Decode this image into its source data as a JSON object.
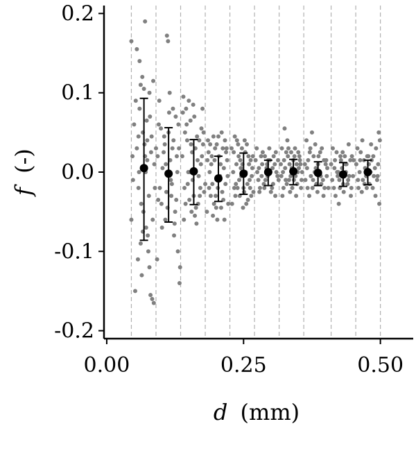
{
  "chart_data": {
    "type": "scatter",
    "xlabel_var": "d",
    "xlabel_unit": "(mm)",
    "ylabel_var": "f",
    "ylabel_unit": "(-)",
    "xlim": [
      -0.005,
      0.56
    ],
    "ylim": [
      -0.21,
      0.21
    ],
    "x_ticks": [
      0.0,
      0.25,
      0.5
    ],
    "x_tick_labels": [
      "0.00",
      "0.25",
      "0.50"
    ],
    "y_ticks": [
      0.2,
      0.1,
      0.0,
      -0.1,
      -0.2
    ],
    "y_tick_labels": [
      "0.2",
      "0.1",
      "0.0",
      "-0.1",
      "-0.2"
    ],
    "bin_edges": [
      0.045,
      0.09,
      0.135,
      0.18,
      0.225,
      0.27,
      0.315,
      0.36,
      0.41,
      0.455,
      0.5
    ],
    "grid": "vertical dashed at bin edges",
    "colors": {
      "scatter": "#808080",
      "means": "#000000",
      "grid": "#b0b0b0"
    },
    "means": [
      {
        "x": 0.068,
        "y": 0.005,
        "err_low": -0.086,
        "err_high": 0.093
      },
      {
        "x": 0.113,
        "y": -0.002,
        "err_low": -0.063,
        "err_high": 0.056
      },
      {
        "x": 0.159,
        "y": 0.001,
        "err_low": -0.041,
        "err_high": 0.041
      },
      {
        "x": 0.204,
        "y": -0.008,
        "err_low": -0.037,
        "err_high": 0.02
      },
      {
        "x": 0.25,
        "y": -0.002,
        "err_low": -0.028,
        "err_high": 0.024
      },
      {
        "x": 0.295,
        "y": 0.0,
        "err_low": -0.017,
        "err_high": 0.015
      },
      {
        "x": 0.341,
        "y": 0.001,
        "err_low": -0.016,
        "err_high": 0.016
      },
      {
        "x": 0.386,
        "y": -0.001,
        "err_low": -0.017,
        "err_high": 0.013
      },
      {
        "x": 0.432,
        "y": -0.003,
        "err_low": -0.018,
        "err_high": 0.012
      },
      {
        "x": 0.477,
        "y": 0.0,
        "err_low": -0.016,
        "err_high": 0.015
      }
    ],
    "scatter_points": [
      [
        0.045,
        0.165
      ],
      [
        0.055,
        0.155
      ],
      [
        0.06,
        0.14
      ],
      [
        0.065,
        0.12
      ],
      [
        0.07,
        0.19
      ],
      [
        0.062,
        0.11
      ],
      [
        0.068,
        0.105
      ],
      [
        0.05,
        0.06
      ],
      [
        0.055,
        0.03
      ],
      [
        0.058,
        -0.02
      ],
      [
        0.06,
        0.08
      ],
      [
        0.063,
        -0.04
      ],
      [
        0.066,
        0.05
      ],
      [
        0.07,
        0.02
      ],
      [
        0.072,
        -0.07
      ],
      [
        0.074,
        0.04
      ],
      [
        0.076,
        -0.1
      ],
      [
        0.078,
        -0.12
      ],
      [
        0.08,
        -0.155
      ],
      [
        0.083,
        -0.16
      ],
      [
        0.086,
        -0.165
      ],
      [
        0.052,
        -0.15
      ],
      [
        0.057,
        -0.11
      ],
      [
        0.062,
        -0.09
      ],
      [
        0.067,
        -0.05
      ],
      [
        0.071,
        0.0
      ],
      [
        0.073,
        0.065
      ],
      [
        0.077,
        -0.03
      ],
      [
        0.079,
        0.07
      ],
      [
        0.081,
        0.025
      ],
      [
        0.084,
        -0.06
      ],
      [
        0.087,
        0.01
      ],
      [
        0.048,
        -0.01
      ],
      [
        0.053,
        0.09
      ],
      [
        0.059,
        0.0
      ],
      [
        0.064,
        -0.13
      ],
      [
        0.069,
        0.035
      ],
      [
        0.075,
        -0.08
      ],
      [
        0.082,
        0.045
      ],
      [
        0.088,
        -0.02
      ],
      [
        0.045,
        -0.06
      ],
      [
        0.047,
        0.02
      ],
      [
        0.085,
        0.115
      ],
      [
        0.078,
        0.1
      ],
      [
        0.09,
        0.03
      ],
      [
        0.066,
        -0.075
      ],
      [
        0.074,
        0.015
      ],
      [
        0.058,
        0.045
      ],
      [
        0.095,
        0.06
      ],
      [
        0.1,
        -0.04
      ],
      [
        0.105,
        0.045
      ],
      [
        0.11,
        0.172
      ],
      [
        0.112,
        0.165
      ],
      [
        0.115,
        0.1
      ],
      [
        0.118,
        -0.03
      ],
      [
        0.12,
        0.03
      ],
      [
        0.123,
        -0.08
      ],
      [
        0.126,
        0.07
      ],
      [
        0.13,
        -0.1
      ],
      [
        0.093,
        0.02
      ],
      [
        0.097,
        -0.02
      ],
      [
        0.102,
        0.005
      ],
      [
        0.107,
        -0.06
      ],
      [
        0.113,
        0.05
      ],
      [
        0.117,
        -0.01
      ],
      [
        0.121,
        0.08
      ],
      [
        0.125,
        -0.05
      ],
      [
        0.128,
        0.02
      ],
      [
        0.131,
        0.06
      ],
      [
        0.134,
        -0.12
      ],
      [
        0.133,
        -0.14
      ],
      [
        0.092,
        -0.11
      ],
      [
        0.096,
        0.09
      ],
      [
        0.101,
        -0.07
      ],
      [
        0.106,
        0.035
      ],
      [
        0.111,
        -0.045
      ],
      [
        0.116,
        0.015
      ],
      [
        0.119,
        -0.015
      ],
      [
        0.122,
        0.04
      ],
      [
        0.127,
        -0.035
      ],
      [
        0.129,
        0.0
      ],
      [
        0.104,
        0.025
      ],
      [
        0.109,
        -0.025
      ],
      [
        0.114,
        0.075
      ],
      [
        0.124,
        -0.065
      ],
      [
        0.099,
        0.055
      ],
      [
        0.132,
        0.03
      ],
      [
        0.094,
        -0.035
      ],
      [
        0.108,
        0.01
      ],
      [
        0.14,
        0.095
      ],
      [
        0.145,
        0.08
      ],
      [
        0.15,
        0.09
      ],
      [
        0.155,
        -0.05
      ],
      [
        0.16,
        0.07
      ],
      [
        0.165,
        0.045
      ],
      [
        0.17,
        -0.03
      ],
      [
        0.175,
        0.08
      ],
      [
        0.138,
        0.02
      ],
      [
        0.142,
        -0.02
      ],
      [
        0.147,
        0.04
      ],
      [
        0.152,
        0.0
      ],
      [
        0.157,
        -0.01
      ],
      [
        0.162,
        0.03
      ],
      [
        0.167,
        -0.04
      ],
      [
        0.172,
        0.01
      ],
      [
        0.177,
        0.05
      ],
      [
        0.141,
        -0.06
      ],
      [
        0.146,
        0.06
      ],
      [
        0.151,
        -0.035
      ],
      [
        0.156,
        0.025
      ],
      [
        0.161,
        -0.055
      ],
      [
        0.166,
        0.015
      ],
      [
        0.171,
        -0.02
      ],
      [
        0.176,
        0.035
      ],
      [
        0.143,
        0.05
      ],
      [
        0.153,
        0.065
      ],
      [
        0.163,
        -0.045
      ],
      [
        0.173,
        0.055
      ],
      [
        0.148,
        -0.015
      ],
      [
        0.158,
        0.085
      ],
      [
        0.168,
        -0.005
      ],
      [
        0.178,
        -0.025
      ],
      [
        0.139,
        0.075
      ],
      [
        0.144,
        -0.04
      ],
      [
        0.154,
        0.035
      ],
      [
        0.164,
        -0.065
      ],
      [
        0.174,
        0.02
      ],
      [
        0.149,
        0.0
      ],
      [
        0.159,
        -0.03
      ],
      [
        0.169,
        0.04
      ],
      [
        0.18,
        -0.015
      ],
      [
        0.185,
        0.04
      ],
      [
        0.19,
        -0.03
      ],
      [
        0.195,
        0.045
      ],
      [
        0.2,
        -0.045
      ],
      [
        0.205,
        0.02
      ],
      [
        0.21,
        0.05
      ],
      [
        0.215,
        -0.06
      ],
      [
        0.22,
        0.015
      ],
      [
        0.188,
        0.0
      ],
      [
        0.193,
        -0.015
      ],
      [
        0.198,
        0.03
      ],
      [
        0.203,
        -0.02
      ],
      [
        0.208,
        0.01
      ],
      [
        0.213,
        -0.035
      ],
      [
        0.218,
        0.025
      ],
      [
        0.183,
        -0.05
      ],
      [
        0.186,
        0.025
      ],
      [
        0.191,
        0.01
      ],
      [
        0.196,
        -0.04
      ],
      [
        0.201,
        0.035
      ],
      [
        0.206,
        -0.01
      ],
      [
        0.211,
        -0.025
      ],
      [
        0.216,
        0.04
      ],
      [
        0.221,
        -0.005
      ],
      [
        0.184,
        0.015
      ],
      [
        0.194,
        -0.055
      ],
      [
        0.204,
        0.045
      ],
      [
        0.214,
        0.005
      ],
      [
        0.189,
        0.035
      ],
      [
        0.199,
        -0.03
      ],
      [
        0.209,
        -0.045
      ],
      [
        0.219,
        0.03
      ],
      [
        0.187,
        -0.02
      ],
      [
        0.197,
        0.015
      ],
      [
        0.207,
        -0.005
      ],
      [
        0.217,
        -0.015
      ],
      [
        0.192,
        0.02
      ],
      [
        0.202,
        -0.06
      ],
      [
        0.212,
        0.03
      ],
      [
        0.222,
        -0.04
      ],
      [
        0.228,
        0.03
      ],
      [
        0.233,
        -0.02
      ],
      [
        0.238,
        0.04
      ],
      [
        0.243,
        -0.03
      ],
      [
        0.248,
        0.01
      ],
      [
        0.253,
        0.025
      ],
      [
        0.258,
        -0.035
      ],
      [
        0.263,
        0.015
      ],
      [
        0.231,
        0.0
      ],
      [
        0.236,
        -0.015
      ],
      [
        0.241,
        0.02
      ],
      [
        0.246,
        -0.005
      ],
      [
        0.251,
        -0.025
      ],
      [
        0.256,
        0.035
      ],
      [
        0.261,
        -0.01
      ],
      [
        0.266,
        0.005
      ],
      [
        0.229,
        -0.04
      ],
      [
        0.234,
        0.045
      ],
      [
        0.239,
        -0.02
      ],
      [
        0.244,
        0.015
      ],
      [
        0.249,
        -0.045
      ],
      [
        0.254,
        0.0
      ],
      [
        0.259,
        0.02
      ],
      [
        0.264,
        -0.03
      ],
      [
        0.232,
        0.025
      ],
      [
        0.242,
        -0.01
      ],
      [
        0.252,
        0.04
      ],
      [
        0.262,
        -0.02
      ],
      [
        0.237,
        0.01
      ],
      [
        0.247,
        0.03
      ],
      [
        0.257,
        -0.015
      ],
      [
        0.267,
        0.02
      ],
      [
        0.235,
        -0.03
      ],
      [
        0.245,
        0.005
      ],
      [
        0.255,
        -0.04
      ],
      [
        0.265,
        -0.005
      ],
      [
        0.24,
        0.035
      ],
      [
        0.25,
        -0.02
      ],
      [
        0.26,
        0.01
      ],
      [
        0.268,
        -0.025
      ],
      [
        0.272,
        0.015
      ],
      [
        0.277,
        -0.01
      ],
      [
        0.282,
        0.02
      ],
      [
        0.287,
        -0.015
      ],
      [
        0.292,
        0.005
      ],
      [
        0.297,
        0.03
      ],
      [
        0.302,
        -0.02
      ],
      [
        0.307,
        0.01
      ],
      [
        0.312,
        -0.005
      ],
      [
        0.275,
        0.0
      ],
      [
        0.28,
        -0.02
      ],
      [
        0.285,
        0.025
      ],
      [
        0.29,
        -0.01
      ],
      [
        0.295,
        0.015
      ],
      [
        0.3,
        -0.025
      ],
      [
        0.305,
        0.02
      ],
      [
        0.31,
        0.0
      ],
      [
        0.274,
        0.03
      ],
      [
        0.279,
        -0.025
      ],
      [
        0.284,
        0.01
      ],
      [
        0.289,
        0.02
      ],
      [
        0.294,
        -0.005
      ],
      [
        0.299,
        0.0
      ],
      [
        0.304,
        -0.015
      ],
      [
        0.309,
        0.025
      ],
      [
        0.314,
        -0.01
      ],
      [
        0.278,
        0.005
      ],
      [
        0.288,
        -0.02
      ],
      [
        0.298,
        0.015
      ],
      [
        0.308,
        -0.03
      ],
      [
        0.283,
        -0.005
      ],
      [
        0.293,
        0.01
      ],
      [
        0.303,
        0.005
      ],
      [
        0.313,
        0.015
      ],
      [
        0.318,
        0.01
      ],
      [
        0.323,
        -0.02
      ],
      [
        0.328,
        0.025
      ],
      [
        0.333,
        -0.01
      ],
      [
        0.338,
        0.005
      ],
      [
        0.343,
        0.02
      ],
      [
        0.348,
        -0.015
      ],
      [
        0.353,
        0.015
      ],
      [
        0.32,
        0.03
      ],
      [
        0.325,
        0.055
      ],
      [
        0.33,
        0.04
      ],
      [
        0.335,
        -0.025
      ],
      [
        0.34,
        0.0
      ],
      [
        0.345,
        -0.005
      ],
      [
        0.35,
        0.025
      ],
      [
        0.355,
        -0.02
      ],
      [
        0.319,
        -0.005
      ],
      [
        0.324,
        0.015
      ],
      [
        0.329,
        -0.015
      ],
      [
        0.334,
        0.01
      ],
      [
        0.339,
        -0.02
      ],
      [
        0.344,
        0.03
      ],
      [
        0.349,
        0.0
      ],
      [
        0.354,
        0.01
      ],
      [
        0.321,
        -0.03
      ],
      [
        0.326,
        0.005
      ],
      [
        0.331,
        0.02
      ],
      [
        0.336,
        -0.005
      ],
      [
        0.341,
        0.015
      ],
      [
        0.346,
        -0.03
      ],
      [
        0.351,
        0.005
      ],
      [
        0.356,
        -0.01
      ],
      [
        0.322,
        0.0
      ],
      [
        0.332,
        0.03
      ],
      [
        0.342,
        -0.01
      ],
      [
        0.352,
        0.02
      ],
      [
        0.327,
        -0.01
      ],
      [
        0.337,
        0.025
      ],
      [
        0.347,
        0.01
      ],
      [
        0.357,
        0.0
      ],
      [
        0.362,
        0.01
      ],
      [
        0.367,
        -0.02
      ],
      [
        0.372,
        0.03
      ],
      [
        0.377,
        -0.01
      ],
      [
        0.382,
        0.005
      ],
      [
        0.387,
        0.02
      ],
      [
        0.392,
        -0.015
      ],
      [
        0.397,
        0.015
      ],
      [
        0.402,
        -0.005
      ],
      [
        0.365,
        0.04
      ],
      [
        0.37,
        -0.03
      ],
      [
        0.375,
        0.05
      ],
      [
        0.38,
        0.0
      ],
      [
        0.385,
        -0.025
      ],
      [
        0.39,
        0.025
      ],
      [
        0.395,
        -0.01
      ],
      [
        0.4,
        0.01
      ],
      [
        0.405,
        -0.02
      ],
      [
        0.363,
        -0.01
      ],
      [
        0.368,
        0.015
      ],
      [
        0.373,
        -0.005
      ],
      [
        0.378,
        0.02
      ],
      [
        0.383,
        -0.015
      ],
      [
        0.388,
        0.0
      ],
      [
        0.393,
        0.03
      ],
      [
        0.398,
        -0.02
      ],
      [
        0.403,
        0.005
      ],
      [
        0.366,
        0.005
      ],
      [
        0.376,
        -0.02
      ],
      [
        0.386,
        0.01
      ],
      [
        0.396,
        -0.03
      ],
      [
        0.371,
        0.025
      ],
      [
        0.381,
        0.035
      ],
      [
        0.391,
        -0.005
      ],
      [
        0.401,
        0.015
      ],
      [
        0.41,
        0.01
      ],
      [
        0.415,
        -0.02
      ],
      [
        0.42,
        0.025
      ],
      [
        0.425,
        -0.01
      ],
      [
        0.43,
        0.005
      ],
      [
        0.435,
        0.02
      ],
      [
        0.44,
        -0.015
      ],
      [
        0.445,
        0.015
      ],
      [
        0.45,
        -0.005
      ],
      [
        0.413,
        0.03
      ],
      [
        0.418,
        -0.03
      ],
      [
        0.423,
        0.0
      ],
      [
        0.428,
        0.015
      ],
      [
        0.433,
        -0.025
      ],
      [
        0.438,
        0.01
      ],
      [
        0.443,
        -0.005
      ],
      [
        0.448,
        0.02
      ],
      [
        0.412,
        -0.01
      ],
      [
        0.417,
        0.015
      ],
      [
        0.422,
        -0.005
      ],
      [
        0.427,
        0.02
      ],
      [
        0.432,
        -0.015
      ],
      [
        0.437,
        0.0
      ],
      [
        0.442,
        0.035
      ],
      [
        0.447,
        -0.02
      ],
      [
        0.416,
        0.005
      ],
      [
        0.426,
        -0.02
      ],
      [
        0.436,
        0.01
      ],
      [
        0.446,
        -0.03
      ],
      [
        0.421,
        0.0
      ],
      [
        0.431,
        0.025
      ],
      [
        0.441,
        -0.01
      ],
      [
        0.451,
        0.015
      ],
      [
        0.424,
        -0.04
      ],
      [
        0.456,
        0.01
      ],
      [
        0.46,
        -0.02
      ],
      [
        0.464,
        0.025
      ],
      [
        0.468,
        -0.01
      ],
      [
        0.472,
        0.005
      ],
      [
        0.476,
        0.02
      ],
      [
        0.48,
        -0.015
      ],
      [
        0.484,
        0.015
      ],
      [
        0.488,
        -0.005
      ],
      [
        0.492,
        0.03
      ],
      [
        0.496,
        0.01
      ],
      [
        0.458,
        0.03
      ],
      [
        0.462,
        0.0
      ],
      [
        0.466,
        -0.025
      ],
      [
        0.47,
        0.015
      ],
      [
        0.474,
        -0.005
      ],
      [
        0.478,
        0.02
      ],
      [
        0.482,
        0.0
      ],
      [
        0.486,
        -0.02
      ],
      [
        0.49,
        0.005
      ],
      [
        0.494,
        -0.01
      ],
      [
        0.459,
        -0.01
      ],
      [
        0.467,
        0.04
      ],
      [
        0.475,
        -0.02
      ],
      [
        0.483,
        0.035
      ],
      [
        0.491,
        -0.03
      ],
      [
        0.497,
        0.05
      ],
      [
        0.499,
        0.04
      ],
      [
        0.498,
        -0.04
      ],
      [
        0.463,
        0.015
      ],
      [
        0.471,
        -0.015
      ],
      [
        0.479,
        0.01
      ],
      [
        0.487,
        0.02
      ],
      [
        0.495,
        -0.005
      ]
    ]
  }
}
